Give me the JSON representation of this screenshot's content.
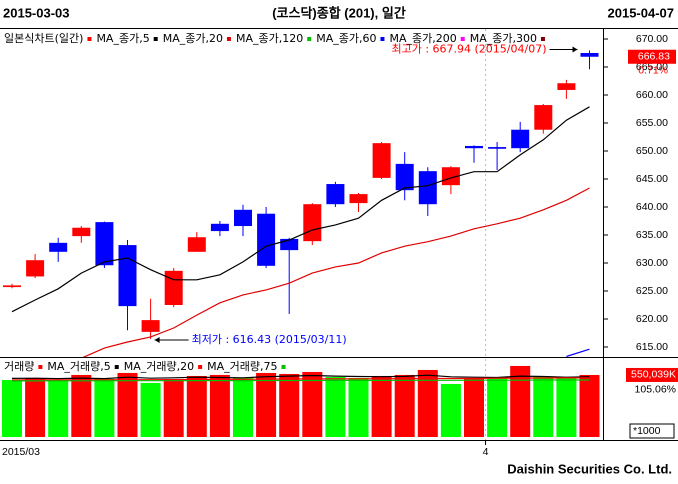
{
  "chart_data": {
    "type": "candlestick",
    "title": "(코스닥)종합 (201), 일간",
    "start_label": "2015-03-03",
    "end_label": "2015-04-07",
    "chart_label": "일본식차트(일간)",
    "footer": "Daishin Securities Co. Ltd.",
    "categories": [
      "2015/03",
      null,
      null,
      null,
      null,
      null,
      null,
      null,
      null,
      null,
      null,
      null,
      null,
      null,
      null,
      null,
      null,
      null,
      null,
      null,
      null,
      "4",
      null,
      null,
      null,
      null
    ],
    "open": [
      625.7,
      627.6,
      633.6,
      634.8,
      637.3,
      633.2,
      617.7,
      622.5,
      632.0,
      637.0,
      639.5,
      638.8,
      634.3,
      633.9,
      644.1,
      640.7,
      645.2,
      647.7,
      646.4,
      643.9,
      650.9,
      650.7,
      653.8,
      653.8,
      660.9,
      667.5
    ],
    "high": [
      626.3,
      631.6,
      634.5,
      636.6,
      637.4,
      634.1,
      623.6,
      629.1,
      635.5,
      637.5,
      640.4,
      640.0,
      634.5,
      640.7,
      644.5,
      642.5,
      651.6,
      649.8,
      647.1,
      647.3,
      651.0,
      651.6,
      655.2,
      658.4,
      662.7,
      667.94
    ],
    "low": [
      625.5,
      627.3,
      630.2,
      633.6,
      629.1,
      618.0,
      616.43,
      622.1,
      632.0,
      634.8,
      634.8,
      629.1,
      620.9,
      633.2,
      640.0,
      639.1,
      645.0,
      641.2,
      638.4,
      642.3,
      647.9,
      646.6,
      649.8,
      653.1,
      659.3,
      664.6
    ],
    "close": [
      626.0,
      630.5,
      632.0,
      636.3,
      629.6,
      622.3,
      619.8,
      628.6,
      634.6,
      635.7,
      636.6,
      629.5,
      632.3,
      640.5,
      640.5,
      642.3,
      651.4,
      643.0,
      640.5,
      647.1,
      650.5,
      650.4,
      650.5,
      658.2,
      662.1,
      666.83
    ],
    "up_color": "#ff0000",
    "down_color": "#0000ff",
    "candle_legend_color": "#ff0000",
    "series": [
      {
        "name": "MA_종가,5",
        "color": "#000000",
        "values": [
          621.3,
          623.4,
          625.4,
          628.2,
          630.2,
          630.9,
          628.8,
          627.0,
          627.0,
          627.9,
          630.2,
          633.0,
          634.1,
          635.9,
          636.8,
          638.0,
          641.2,
          643.4,
          643.8,
          645.2,
          646.3,
          646.3,
          649.3,
          652.0,
          655.5,
          657.9
        ]
      },
      {
        "name": "MA_종가,20",
        "color": "#e00000",
        "values": [
          null,
          null,
          null,
          613.0,
          614.8,
          615.9,
          616.8,
          618.4,
          620.7,
          622.9,
          624.3,
          625.2,
          626.4,
          628.2,
          629.3,
          630.0,
          631.8,
          633.0,
          633.8,
          634.8,
          636.1,
          637.0,
          638.0,
          639.5,
          641.2,
          643.4
        ]
      },
      {
        "name": "MA_종가,120",
        "color": "#00c000"
      },
      {
        "name": "MA_종가,60",
        "color": "#0000ff",
        "values": [
          null,
          null,
          null,
          null,
          null,
          null,
          null,
          null,
          null,
          null,
          null,
          null,
          null,
          null,
          null,
          null,
          null,
          null,
          null,
          null,
          null,
          null,
          null,
          null,
          613.3,
          614.6
        ]
      },
      {
        "name": "MA_종가,200",
        "color": "#ff00ff"
      },
      {
        "name": "MA_종가,300",
        "color": "#800000"
      }
    ],
    "ylim": [
      613.5,
      671
    ],
    "yticks": [
      {
        "value": 615,
        "label": "615.00"
      },
      {
        "value": 620,
        "label": "620.00"
      },
      {
        "value": 625,
        "label": "625.00"
      },
      {
        "value": 630,
        "label": "630.00"
      },
      {
        "value": 635,
        "label": "635.00"
      },
      {
        "value": 640,
        "label": "640.00"
      },
      {
        "value": 645,
        "label": "645.00"
      },
      {
        "value": 650,
        "label": "650.00"
      },
      {
        "value": 655,
        "label": "655.00"
      },
      {
        "value": 660,
        "label": "660.00"
      },
      {
        "value": 665,
        "label": "665.00"
      },
      {
        "value": 670,
        "label": "670.00"
      }
    ],
    "change_label": "0.71%",
    "annotations": [
      {
        "text": "최고가 : 667.94 (2015/04/07)",
        "color": "#ff0000"
      },
      {
        "text": "최저가 : 616.43 (2015/03/11)",
        "color": "#0000ff"
      }
    ],
    "volume": {
      "title": "거래량",
      "legend_color": "#ff0000",
      "values": [
        505700,
        523400,
        496800,
        550100,
        514600,
        567800,
        479100,
        514600,
        541200,
        550100,
        523400,
        567800,
        558900,
        576700,
        532300,
        523400,
        541200,
        550100,
        594400,
        470200,
        523400,
        523400,
        629900,
        532300,
        532300,
        550039
      ],
      "colors": [
        "#00ff00",
        "#ff0000",
        "#00ff00",
        "#ff0000",
        "#00ff00",
        "#ff0000",
        "#00ff00",
        "#ff0000",
        "#ff0000",
        "#ff0000",
        "#00ff00",
        "#ff0000",
        "#ff0000",
        "#ff0000",
        "#00ff00",
        "#00ff00",
        "#ff0000",
        "#ff0000",
        "#ff0000",
        "#00ff00",
        "#ff0000",
        "#00ff00",
        "#ff0000",
        "#00ff00",
        "#00ff00",
        "#ff0000"
      ],
      "series": [
        {
          "name": "MA_거래량,5",
          "color": "#000000",
          "values": [
            520000,
            521000,
            518000,
            522000,
            518000,
            530000,
            521000,
            525000,
            530000,
            528000,
            525000,
            535000,
            540000,
            545000,
            540000,
            536000,
            535000,
            537000,
            548000,
            534000,
            530000,
            528000,
            540000,
            536000,
            530000,
            535000
          ]
        },
        {
          "name": "MA_거래량,20",
          "color": "#ff0000",
          "values": [
            505000,
            506000,
            506000,
            507000,
            507000,
            508000,
            508000,
            509000,
            510000,
            511000,
            512000,
            513000,
            514000,
            515000,
            516000,
            516000,
            517000,
            518000,
            519000,
            519000,
            520000,
            521000,
            522000,
            523000,
            524000,
            525000
          ]
        },
        {
          "name": "MA_거래량,75",
          "color": "#00c000",
          "values": [
            497000,
            497000,
            498000,
            498000,
            498000,
            499000,
            499000,
            499000,
            500000,
            500000,
            500000,
            501000,
            501000,
            501000,
            502000,
            502000,
            502000,
            503000,
            503000,
            503000,
            504000,
            504000,
            504000,
            505000,
            505000,
            505000
          ]
        }
      ],
      "ylim": [
        0,
        665000
      ],
      "value_label": "550,039K",
      "ratio_label": "105.06%",
      "unit_label": "*1000"
    }
  }
}
